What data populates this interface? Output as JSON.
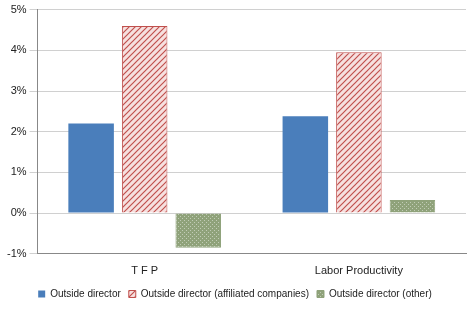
{
  "chart_data": {
    "type": "bar",
    "categories": [
      "T F P",
      "Labor Productivity"
    ],
    "series": [
      {
        "name": "Outside director",
        "color": "#4a7ebb",
        "values": [
          2.2,
          2.38
        ]
      },
      {
        "name": "Outside director (affiliated companies)",
        "color": "#c0504d",
        "values": [
          4.6,
          3.95
        ]
      },
      {
        "name": "Outside director (other)",
        "color": "#8fa27a",
        "values": [
          -0.85,
          0.32
        ]
      }
    ],
    "ylim": [
      -1,
      5
    ],
    "yticks": [
      {
        "value": -1,
        "label": "-1%"
      },
      {
        "value": 0,
        "label": "0%"
      },
      {
        "value": 1,
        "label": "1%"
      },
      {
        "value": 2,
        "label": "2%"
      },
      {
        "value": 3,
        "label": "3%"
      },
      {
        "value": 4,
        "label": "4%"
      },
      {
        "value": 5,
        "label": "5%"
      }
    ],
    "grid": true,
    "legend": "bottom"
  }
}
